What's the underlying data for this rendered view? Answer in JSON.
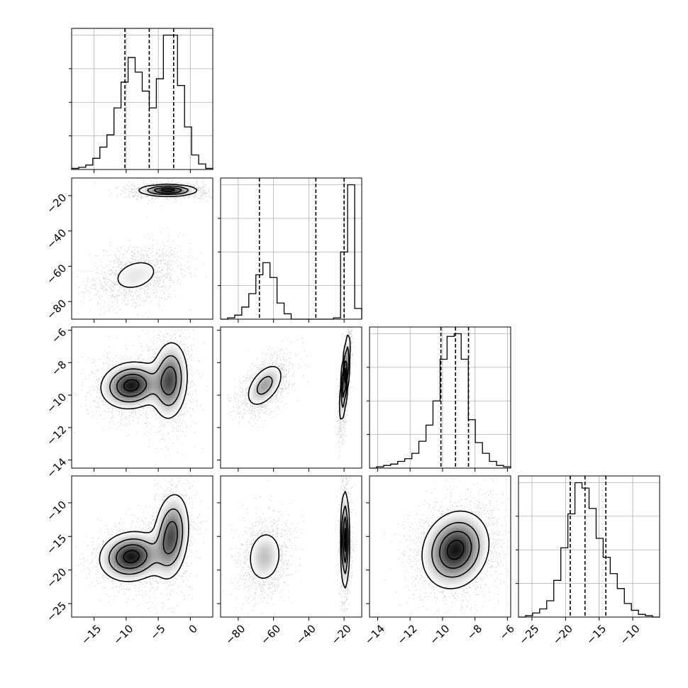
{
  "chart_data": {
    "type": "corner",
    "grid": true,
    "colors": {
      "hist": "#000000",
      "contour": "#000000",
      "quantile_line": "#000000",
      "grid": "#b0b0b0",
      "scatter": "#808080"
    },
    "params": [
      {
        "lim": [
          -18.5,
          3.5
        ],
        "ticks": [
          -15,
          -10,
          -5,
          0
        ],
        "tick_labels": [
          "−15",
          "−10",
          "−5",
          "0"
        ],
        "quantiles": [
          -10.2,
          -6.4,
          -2.6
        ]
      },
      {
        "lim": [
          -90,
          -10
        ],
        "ticks": [
          -80,
          -60,
          -40,
          -20
        ],
        "tick_labels": [
          "−80",
          "−60",
          "−40",
          "−20"
        ],
        "quantiles": [
          -68,
          -36,
          -20
        ]
      },
      {
        "lim": [
          -14.5,
          -5.8
        ],
        "ticks": [
          -14,
          -12,
          -10,
          -8,
          -6
        ],
        "tick_labels": [
          "−14",
          "−12",
          "−10",
          "−8",
          "−6"
        ],
        "quantiles": [
          -10.1,
          -9.2,
          -8.4
        ]
      },
      {
        "lim": [
          -27,
          -6
        ],
        "ticks": [
          -25,
          -20,
          -15,
          -10
        ],
        "tick_labels": [
          "−25",
          "−20",
          "−15",
          "−10"
        ],
        "quantiles": [
          -19.3,
          -17.1,
          -14
        ]
      }
    ],
    "histograms": [
      {
        "param": 0,
        "edges": [
          -18.5,
          -17.4,
          -16.3,
          -15.2,
          -14.1,
          -13.0,
          -11.9,
          -10.8,
          -9.7,
          -8.6,
          -7.5,
          -6.4,
          -5.3,
          -4.2,
          -3.1,
          -2.0,
          -0.9,
          0.2,
          1.3,
          2.4,
          3.5
        ],
        "counts": [
          0.01,
          0.02,
          0.04,
          0.1,
          0.2,
          0.31,
          0.55,
          0.78,
          1.0,
          0.87,
          0.7,
          0.55,
          0.81,
          1.2,
          1.2,
          0.75,
          0.38,
          0.13,
          0.05,
          0.01
        ]
      },
      {
        "param": 1,
        "edges": [
          -90,
          -86,
          -82,
          -78,
          -74,
          -70,
          -66,
          -62,
          -58,
          -54,
          -50,
          -46,
          -42,
          -38,
          -34,
          -30,
          -26,
          -22,
          -18,
          -14,
          -10
        ],
        "counts": [
          0.0,
          0.01,
          0.03,
          0.09,
          0.19,
          0.33,
          0.42,
          0.31,
          0.12,
          0.04,
          0.0,
          0.0,
          0.0,
          0.0,
          0.0,
          0.0,
          0.01,
          0.5,
          1.0,
          0.08
        ]
      },
      {
        "param": 2,
        "edges": [
          -14.5,
          -14.07,
          -13.63,
          -13.2,
          -12.76,
          -12.33,
          -11.89,
          -11.46,
          -11.02,
          -10.59,
          -10.15,
          -9.72,
          -9.28,
          -8.85,
          -8.41,
          -7.98,
          -7.54,
          -7.11,
          -6.67,
          -6.24,
          -5.8
        ],
        "counts": [
          0.0,
          0.01,
          0.02,
          0.03,
          0.05,
          0.07,
          0.11,
          0.2,
          0.32,
          0.5,
          0.81,
          0.98,
          1.0,
          0.81,
          0.36,
          0.19,
          0.11,
          0.05,
          0.02,
          0.01
        ]
      },
      {
        "param": 3,
        "edges": [
          -27,
          -25.95,
          -24.9,
          -23.85,
          -22.8,
          -21.75,
          -20.7,
          -19.65,
          -18.6,
          -17.55,
          -16.5,
          -15.45,
          -14.4,
          -13.35,
          -12.3,
          -11.25,
          -10.2,
          -9.15,
          -8.1,
          -7.05,
          -6
        ],
        "counts": [
          0.0,
          0.01,
          0.03,
          0.06,
          0.12,
          0.27,
          0.51,
          0.76,
          0.99,
          0.95,
          0.8,
          0.58,
          0.44,
          0.32,
          0.21,
          0.1,
          0.05,
          0.02,
          0.01,
          0.0
        ]
      }
    ],
    "pairs": [
      {
        "xparam": 0,
        "yparam": 1,
        "modes": [
          {
            "mx": -3.5,
            "my": -17,
            "sx": 2.2,
            "sy": 1.6,
            "rho": 0,
            "w": 0.5
          },
          {
            "mx": -8.5,
            "my": -65,
            "sx": 2.6,
            "sy": 6.5,
            "rho": 0.3,
            "w": 0.5
          }
        ]
      },
      {
        "xparam": 0,
        "yparam": 2,
        "modes": [
          {
            "mx": -9.2,
            "my": -9.4,
            "sx": 2.3,
            "sy": 0.7,
            "rho": 0.1,
            "w": 0.55
          },
          {
            "mx": -3.2,
            "my": -9.1,
            "sx": 1.4,
            "sy": 1.2,
            "rho": 0.1,
            "w": 0.45
          }
        ]
      },
      {
        "xparam": 1,
        "yparam": 2,
        "modes": [
          {
            "mx": -65,
            "my": -9.4,
            "sx": 5.5,
            "sy": 0.7,
            "rho": 0.5,
            "w": 0.5
          },
          {
            "mx": -19.5,
            "my": -8.9,
            "sx": 1.4,
            "sy": 1.3,
            "rho": 0.7,
            "w": 0.5
          }
        ]
      },
      {
        "xparam": 0,
        "yparam": 3,
        "modes": [
          {
            "mx": -9.2,
            "my": -18,
            "sx": 2.4,
            "sy": 1.8,
            "rho": 0.1,
            "w": 0.55
          },
          {
            "mx": -3,
            "my": -15,
            "sx": 1.4,
            "sy": 3.2,
            "rho": 0.2,
            "w": 0.45
          }
        ]
      },
      {
        "xparam": 1,
        "yparam": 3,
        "modes": [
          {
            "mx": -65,
            "my": -18,
            "sx": 5.5,
            "sy": 2.2,
            "rho": 0.1,
            "w": 0.5
          },
          {
            "mx": -19.5,
            "my": -15.5,
            "sx": 1.2,
            "sy": 3.5,
            "rho": 0,
            "w": 0.5
          }
        ]
      },
      {
        "xparam": 2,
        "yparam": 3,
        "modes": [
          {
            "mx": -9.2,
            "my": -17,
            "sx": 1.0,
            "sy": 2.8,
            "rho": 0.15,
            "w": 1.0
          }
        ]
      }
    ]
  }
}
